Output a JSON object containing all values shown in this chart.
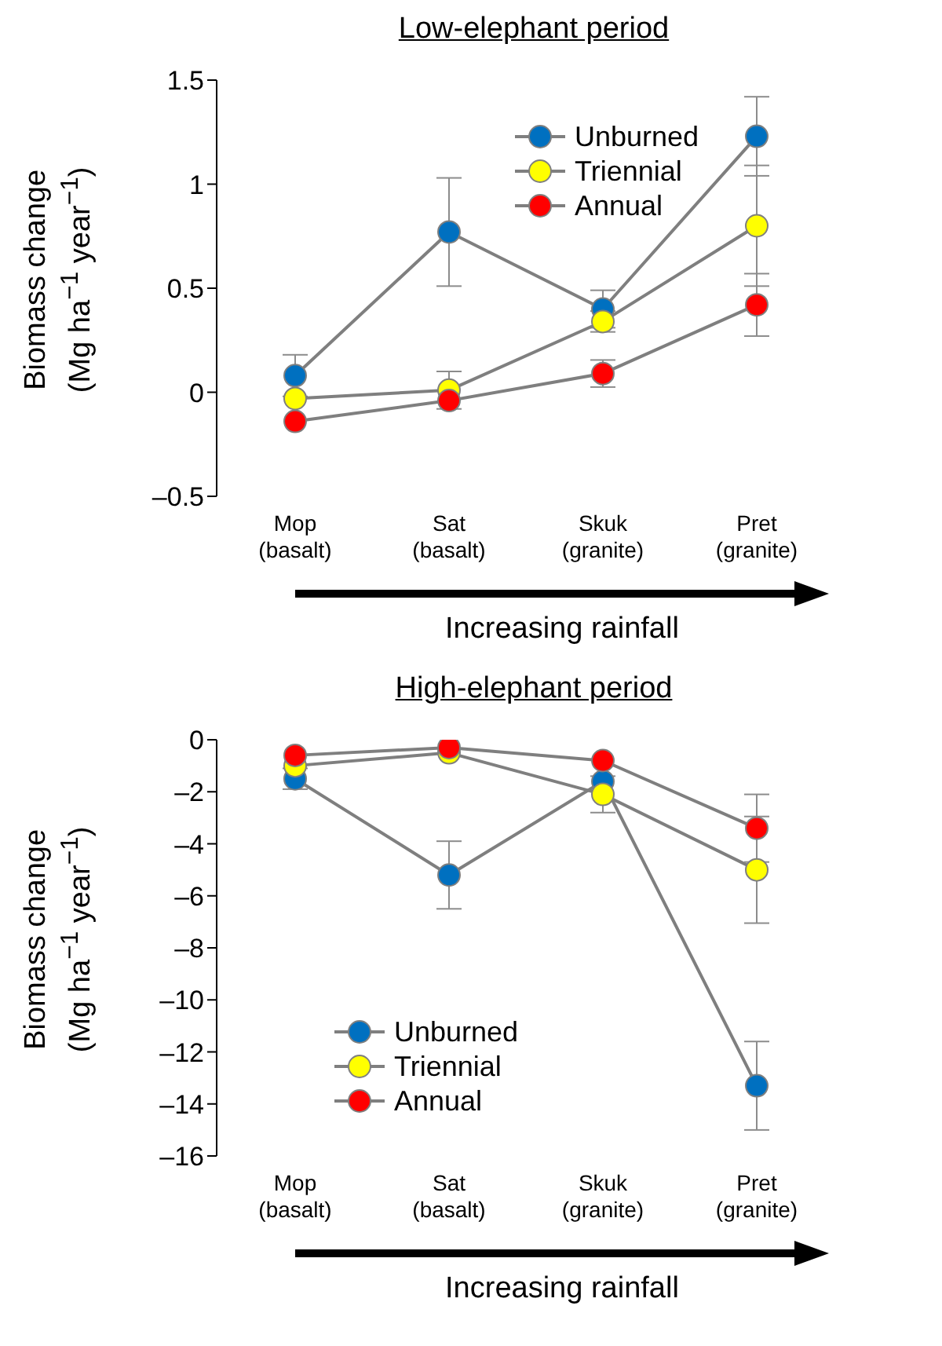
{
  "chart_data": [
    {
      "type": "line",
      "title": "Low-elephant period",
      "ylabel": "Biomass change (Mg ha$^{−1}$ year$^{−1}$)",
      "xlabel": "Increasing rainfall",
      "categories": [
        "Mop (basalt)",
        "Sat (basalt)",
        "Skuk (granite)",
        "Pret (granite)"
      ],
      "ylim": [
        -0.5,
        1.5
      ],
      "yticks": [
        {
          "value": -0.5,
          "label": "–0.5"
        },
        0,
        0.5,
        1,
        1.5
      ],
      "legend": "top right",
      "marker": "circle",
      "grid": false,
      "series": [
        {
          "name": "Unburned",
          "color": "#0070c0",
          "values": [
            0.08,
            0.77,
            0.4,
            1.23
          ],
          "errors": [
            0.1,
            0.26,
            0.09,
            0.19
          ]
        },
        {
          "name": "Triennial",
          "color": "#ffff00",
          "values": [
            -0.03,
            0.01,
            0.34,
            0.8
          ],
          "errors": [
            null,
            0.09,
            0.05,
            0.29
          ]
        },
        {
          "name": "Annual",
          "color": "#ff0000",
          "values": [
            -0.14,
            -0.04,
            0.09,
            0.42
          ],
          "errors": [
            null,
            null,
            0.065,
            0.15
          ]
        }
      ]
    },
    {
      "type": "line",
      "title": "High-elephant period",
      "ylabel": "Biomass change (Mg ha$^{−1}$ year$^{−1}$)",
      "xlabel": "Increasing rainfall",
      "categories": [
        "Mop (basalt)",
        "Sat (basalt)",
        "Skuk (granite)",
        "Pret (granite)"
      ],
      "ylim": [
        -16,
        0
      ],
      "yticks": [
        {
          "value": -16,
          "label": "–16"
        },
        {
          "value": -14,
          "label": "–14"
        },
        {
          "value": -12,
          "label": "–12"
        },
        {
          "value": -10,
          "label": "–10"
        },
        {
          "value": -8,
          "label": "–8"
        },
        {
          "value": -6,
          "label": "–6"
        },
        {
          "value": -4,
          "label": "–4"
        },
        {
          "value": -2,
          "label": "–2"
        },
        0
      ],
      "legend": "bottom left",
      "marker": "circle",
      "grid": false,
      "series": [
        {
          "name": "Unburned",
          "color": "#0070c0",
          "values": [
            -1.5,
            -5.2,
            -1.6,
            -13.3
          ],
          "errors": [
            0.4,
            1.3,
            null,
            1.7
          ]
        },
        {
          "name": "Triennial",
          "color": "#ffff00",
          "values": [
            -1,
            -0.5,
            -2.1,
            -5.0
          ],
          "errors": [
            null,
            null,
            0.7,
            2.05
          ]
        },
        {
          "name": "Annual",
          "color": "#ff0000",
          "values": [
            -0.6,
            -0.3,
            -0.8,
            -3.4
          ],
          "errors": [
            null,
            null,
            null,
            1.3
          ]
        }
      ]
    }
  ]
}
